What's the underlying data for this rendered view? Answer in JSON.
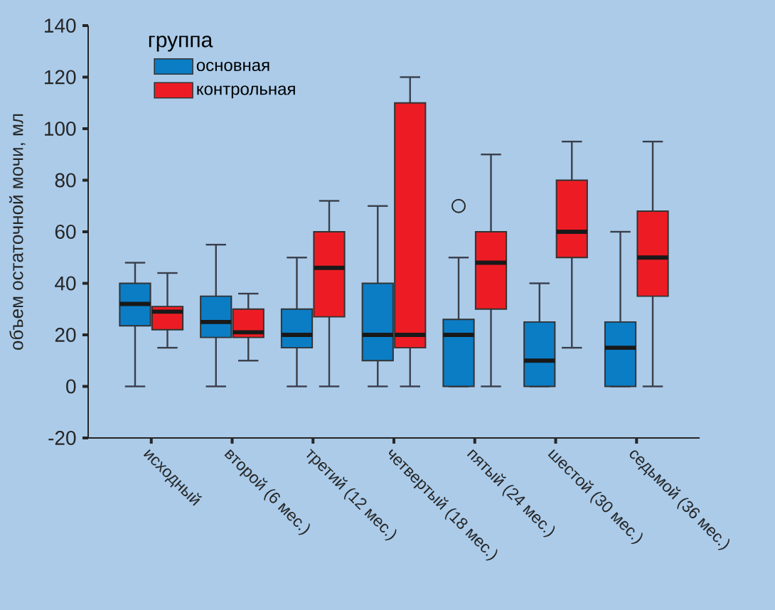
{
  "chart_data": {
    "type": "box",
    "ylabel": "объем остаточной мочи, мл",
    "legend_title": "группа",
    "legend": "top left",
    "ylim": [
      -20,
      140
    ],
    "yticks": [
      -20,
      0,
      20,
      40,
      60,
      80,
      100,
      120,
      140
    ],
    "categories": [
      "исходный",
      "второй (6 мес.)",
      "третий (12 мес.)",
      "четвертый (18 мес.)",
      "пятый (24 мес.)",
      "шестой (30 мес.)",
      "седьмой (36 мес.)"
    ],
    "series": [
      {
        "name": "основная",
        "color": "#0b7dc5",
        "boxes": [
          {
            "low": 0,
            "q1": 23.5,
            "median": 32,
            "q3": 40,
            "high": 48
          },
          {
            "low": 0,
            "q1": 19,
            "median": 25,
            "q3": 35,
            "high": 55
          },
          {
            "low": 0,
            "q1": 15,
            "median": 20,
            "q3": 30,
            "high": 50
          },
          {
            "low": 0,
            "q1": 10,
            "median": 20,
            "q3": 40,
            "high": 70
          },
          {
            "low": 0,
            "q1": 0,
            "median": 20,
            "q3": 26,
            "high": 50,
            "outliers": [
              70
            ]
          },
          {
            "low": 0,
            "q1": 0,
            "median": 10,
            "q3": 25,
            "high": 40
          },
          {
            "low": 0,
            "q1": 0,
            "median": 15,
            "q3": 25,
            "high": 60
          }
        ]
      },
      {
        "name": "контрольная",
        "color": "#ed1c24",
        "boxes": [
          {
            "low": 15,
            "q1": 22,
            "median": 29,
            "q3": 31,
            "high": 44
          },
          {
            "low": 10,
            "q1": 19,
            "median": 21,
            "q3": 30,
            "high": 36
          },
          {
            "low": 0,
            "q1": 27,
            "median": 46,
            "q3": 60,
            "high": 72
          },
          {
            "low": 0,
            "q1": 15,
            "median": 20,
            "q3": 110,
            "high": 120
          },
          {
            "low": 0,
            "q1": 30,
            "median": 48,
            "q3": 60,
            "high": 90
          },
          {
            "low": 15,
            "q1": 50,
            "median": 60,
            "q3": 80,
            "high": 95
          },
          {
            "low": 0,
            "q1": 35,
            "median": 50,
            "q3": 68,
            "high": 95
          }
        ]
      }
    ]
  }
}
